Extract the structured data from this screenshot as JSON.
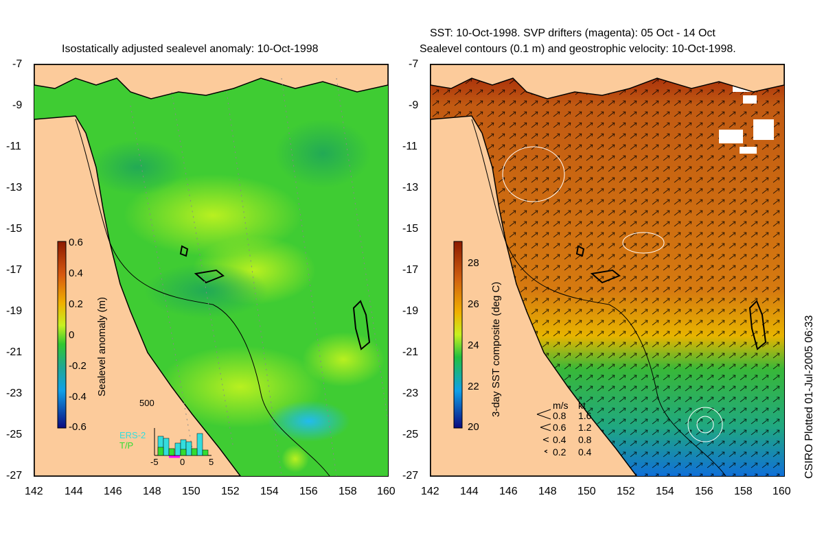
{
  "left_title": "Isostatically adjusted sealevel anomaly: 10-Oct-1998",
  "right_title_1": "SST: 10-Oct-1998. SVP drifters (magenta): 05 Oct - 14 Oct",
  "right_title_2": "Sealevel contours (0.1 m) and geostrophic velocity: 10-Oct-1998.",
  "credit": "CSIRO Plotted 01-Jul-2005 06:33",
  "lat_ticks": [
    "-7",
    "-9",
    "-11",
    "-13",
    "-15",
    "-17",
    "-19",
    "-21",
    "-23",
    "-25",
    "-27"
  ],
  "lon_ticks": [
    "142",
    "144",
    "146",
    "148",
    "150",
    "152",
    "154",
    "156",
    "158",
    "160"
  ],
  "sla_colorbar": {
    "title": "Sealevel anomaly (m)",
    "labels": [
      "0.6",
      "0.4",
      "0.2",
      "0",
      "-0.2",
      "-0.4",
      "-0.6"
    ]
  },
  "sst_colorbar": {
    "title": "3-day SST composite (deg C)",
    "labels": [
      "28",
      "26",
      "24",
      "22",
      "20"
    ]
  },
  "histogram": {
    "ymax_label": "500",
    "x_labels": [
      "-5",
      "0",
      "5"
    ],
    "series": [
      "ERS-2",
      "T/P"
    ],
    "ers2_color": "#33dddd",
    "tp_color": "#33dd33"
  },
  "velocity_legend": {
    "units": [
      "m/s",
      "kt"
    ],
    "rows": [
      [
        "0.8",
        "1.6"
      ],
      [
        "0.6",
        "1.2"
      ],
      [
        "0.4",
        "0.8"
      ],
      [
        "0.2",
        "0.4"
      ]
    ]
  },
  "colors": {
    "land": "#fccb9b",
    "sla_ocean": "#3fcc33",
    "sst_warm": "#c86a18"
  }
}
